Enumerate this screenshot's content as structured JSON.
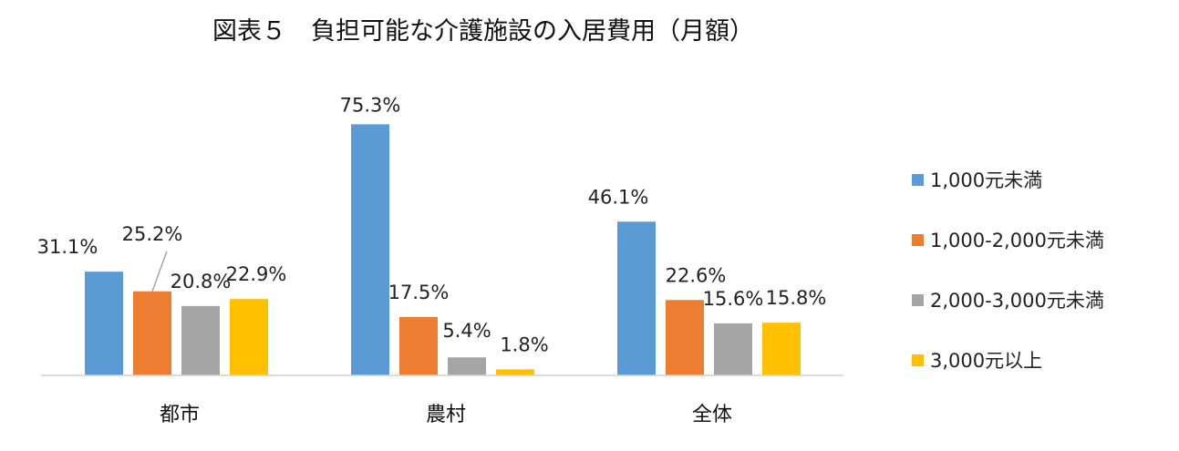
{
  "chart_data": {
    "type": "bar",
    "title": "図表５　負担可能な介護施設の入居費用（月額）",
    "categories": [
      "都市",
      "農村",
      "全体"
    ],
    "series": [
      {
        "name": "1,000元未満",
        "color": "#5B9BD5",
        "values": [
          31.1,
          75.3,
          46.1
        ],
        "labels": [
          "31.1%",
          "75.3%",
          "46.1%"
        ]
      },
      {
        "name": "1,000-2,000元未満",
        "color": "#ED7D31",
        "values": [
          25.2,
          17.5,
          22.6
        ],
        "labels": [
          "25.2%",
          "17.5%",
          "22.6%"
        ]
      },
      {
        "name": "2,000-3,000元未満",
        "color": "#A5A5A5",
        "values": [
          20.8,
          5.4,
          15.6
        ],
        "labels": [
          "20.8%",
          "5.4%",
          "15.6%"
        ]
      },
      {
        "name": "3,000元以上",
        "color": "#FFC000",
        "values": [
          22.9,
          1.8,
          15.8
        ],
        "labels": [
          "22.9%",
          "1.8%",
          "15.8%"
        ]
      }
    ],
    "ylim": [
      0,
      80
    ],
    "xlabel": "",
    "ylabel": "",
    "grid": false,
    "legend": "right",
    "unit": "%"
  }
}
